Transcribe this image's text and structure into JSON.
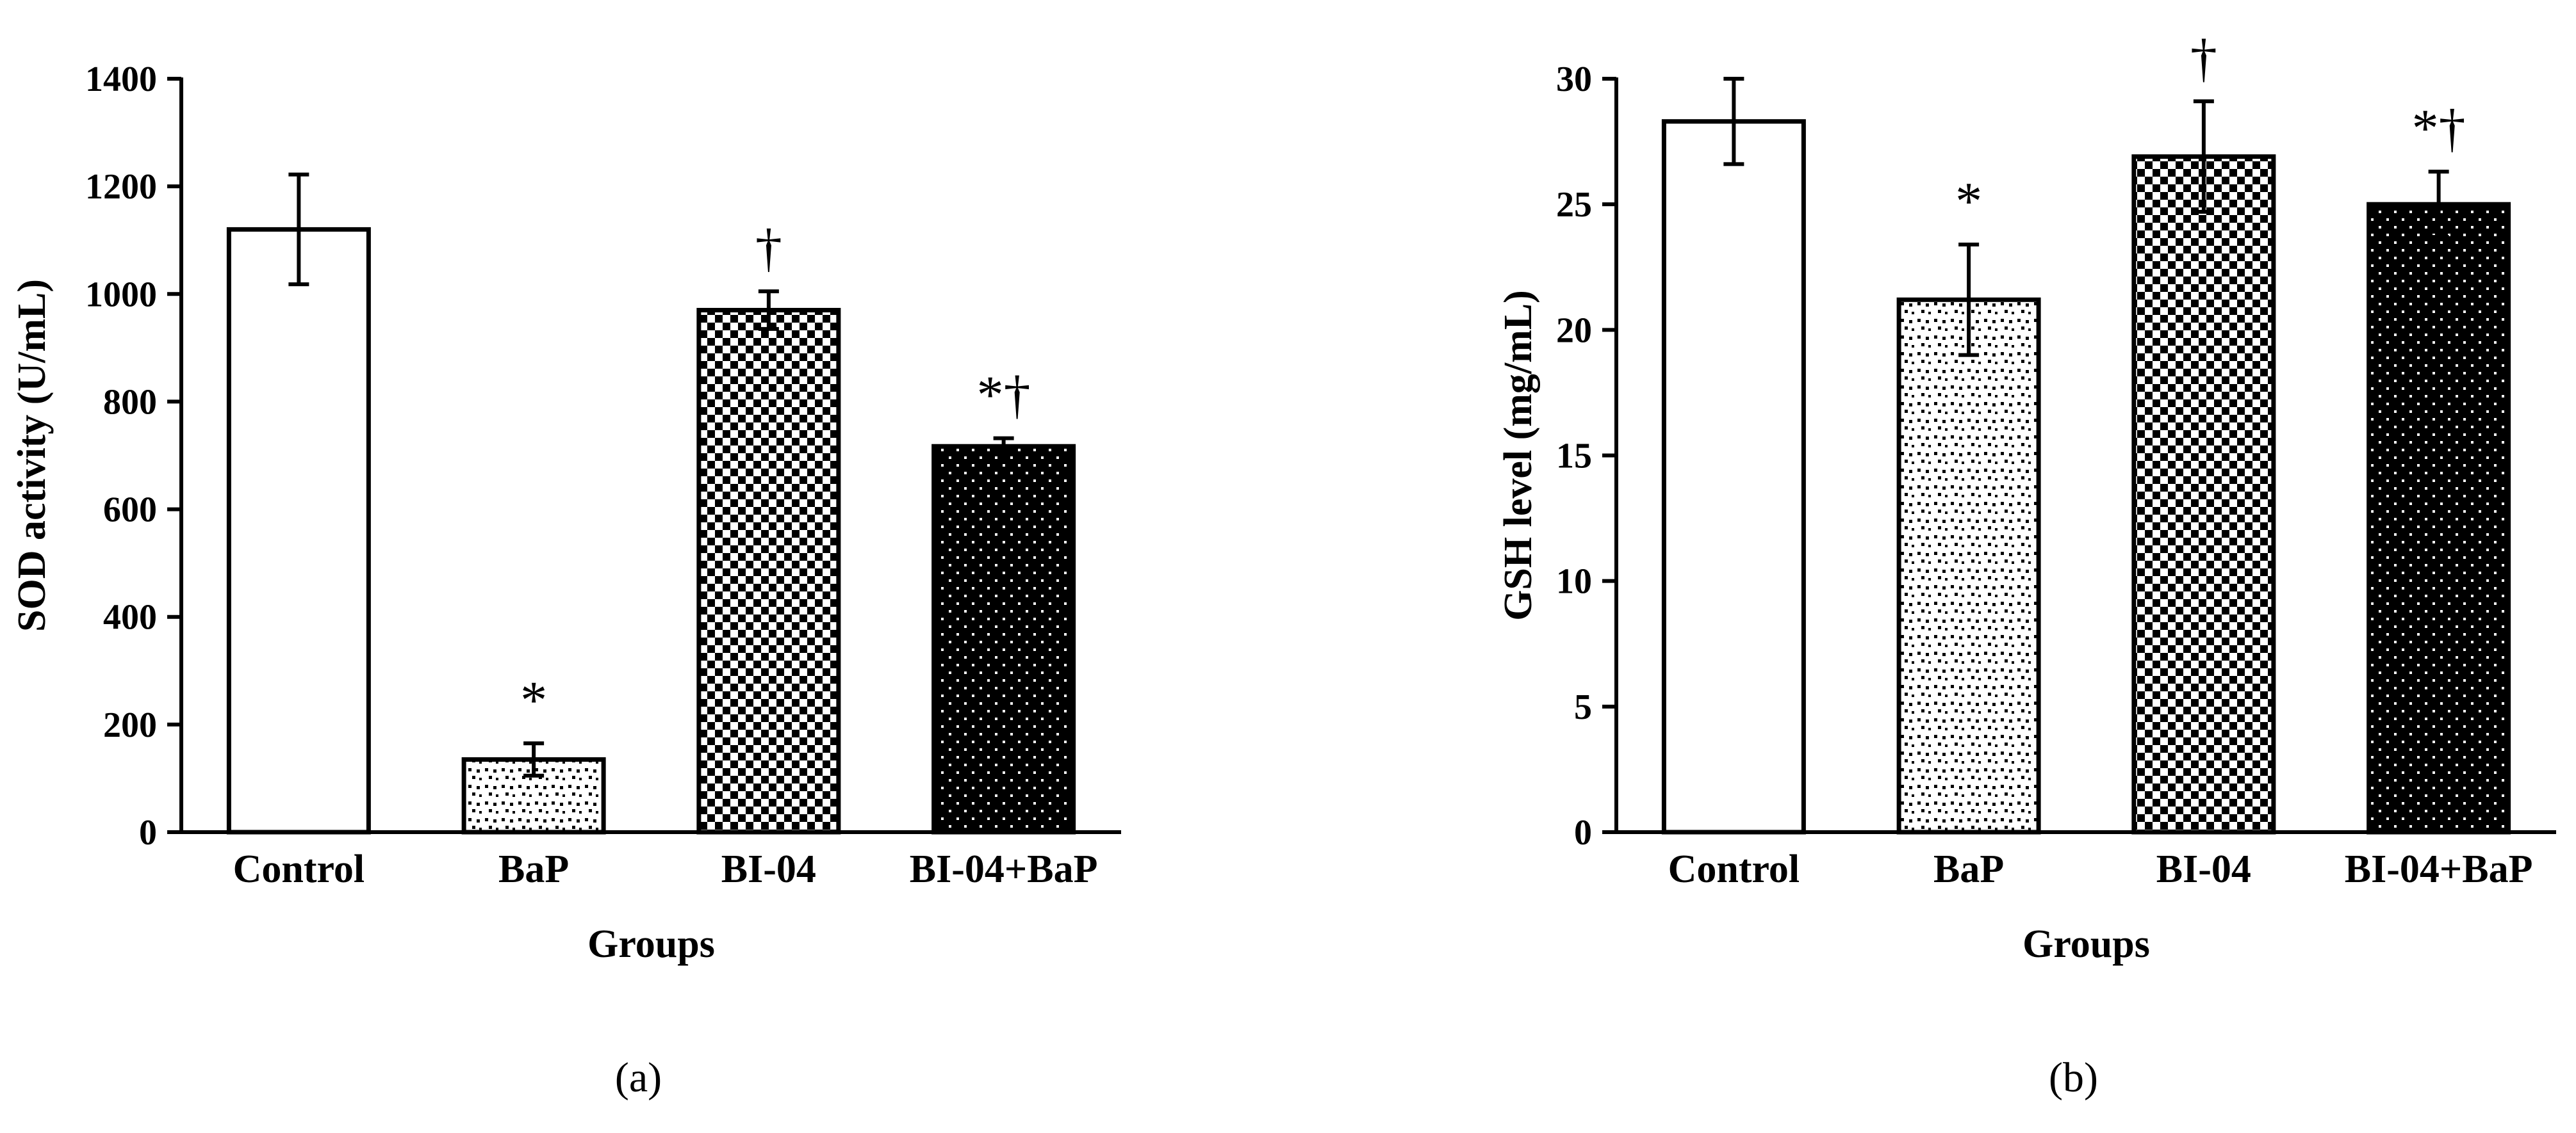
{
  "chart_data": [
    {
      "type": "bar",
      "panel_label": "(a)",
      "categories": [
        "Control",
        "BaP",
        "BI-04",
        "BI-04+BaP"
      ],
      "values": [
        1120,
        135,
        970,
        717
      ],
      "errors": [
        102,
        30,
        35,
        15
      ],
      "significance": [
        "",
        "*",
        "†",
        "*†"
      ],
      "patterns": [
        "white",
        "sparse-dots",
        "checker",
        "black-dots"
      ],
      "xlabel": "Groups",
      "ylabel": "SOD activity (U/mL)",
      "ylim": [
        0,
        1400
      ],
      "yticks": [
        "0",
        "200",
        "400",
        "600",
        "800",
        "1000",
        "1200",
        "1400"
      ]
    },
    {
      "type": "bar",
      "panel_label": "(b)",
      "categories": [
        "Control",
        "BaP",
        "BI-04",
        "BI-04+BaP"
      ],
      "values": [
        28.3,
        21.2,
        26.9,
        25.0
      ],
      "errors": [
        1.7,
        2.2,
        2.2,
        1.3
      ],
      "significance": [
        "",
        "*",
        "†",
        "*†"
      ],
      "patterns": [
        "white",
        "sparse-dots",
        "checker",
        "black-dots"
      ],
      "xlabel": "Groups",
      "ylabel": "GSH level (mg/mL)",
      "ylim": [
        0,
        30
      ],
      "yticks": [
        "0",
        "5",
        "10",
        "15",
        "20",
        "25",
        "30"
      ]
    }
  ]
}
